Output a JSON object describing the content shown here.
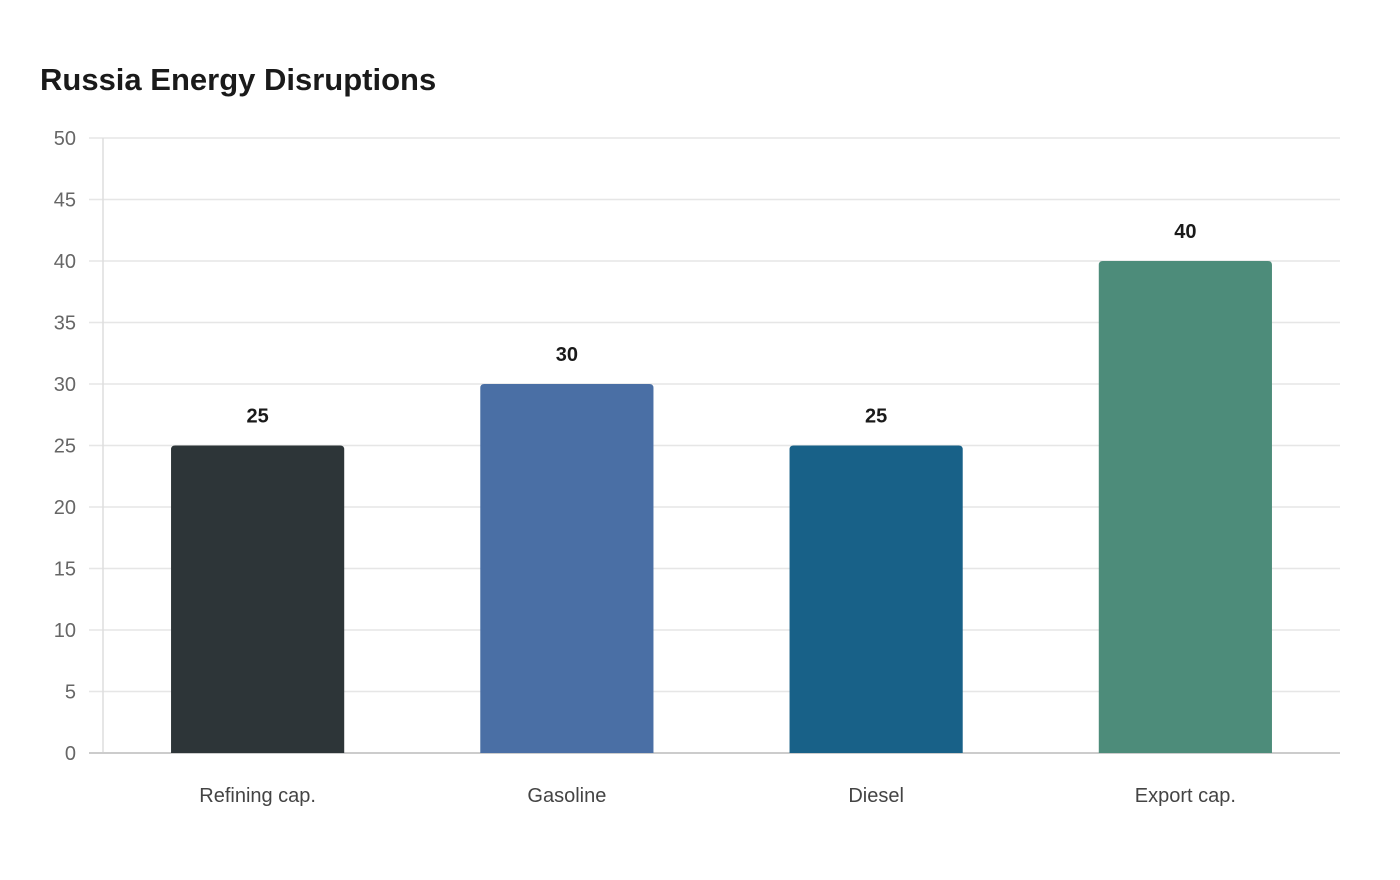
{
  "chart_data": {
    "type": "bar",
    "title": "Russia Energy Disruptions",
    "xlabel": "",
    "ylabel": "",
    "categories": [
      "Refining cap.",
      "Gasoline",
      "Diesel",
      "Export cap."
    ],
    "values": [
      25,
      30,
      25,
      40
    ],
    "colors": [
      "#2d3538",
      "#4a6fa5",
      "#186188",
      "#4d8c7a"
    ],
    "ylim": [
      0,
      50
    ],
    "yticks": [
      0,
      5,
      10,
      15,
      20,
      25,
      30,
      35,
      40,
      45,
      50
    ],
    "grid": true,
    "legend": "none",
    "data_labels": true
  }
}
